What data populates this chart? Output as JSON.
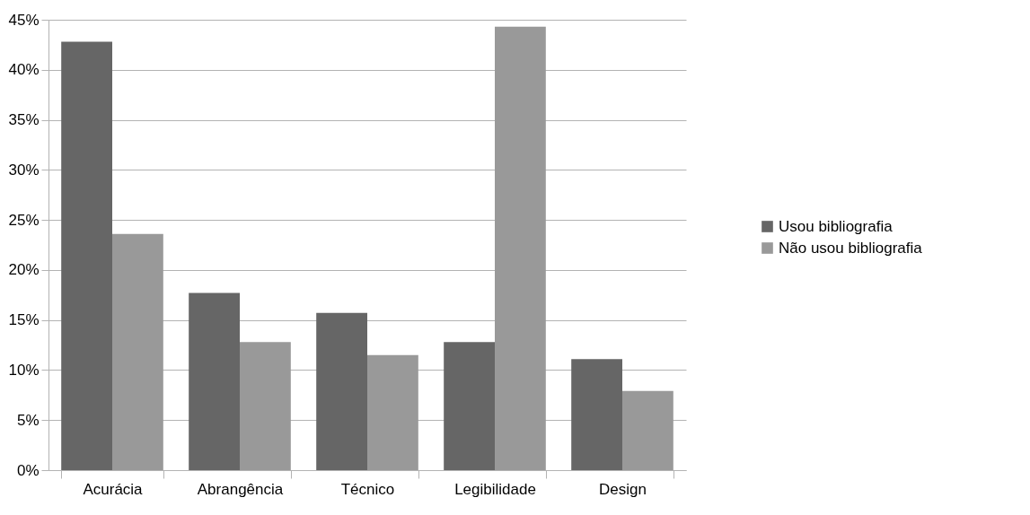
{
  "chart_data": {
    "type": "bar",
    "categories": [
      "Acurácia",
      "Abrangência",
      "Técnico",
      "Legibilidade",
      "Design"
    ],
    "series": [
      {
        "name": "Usou bibliografia",
        "color": "#666666",
        "values": [
          42.8,
          17.7,
          15.7,
          12.8,
          11.1
        ]
      },
      {
        "name": "Não usou bibliografia",
        "color": "#999999",
        "values": [
          23.6,
          12.8,
          11.5,
          44.3,
          7.9
        ]
      }
    ],
    "ylim": [
      0,
      45
    ],
    "yticks": [
      {
        "value": 0,
        "label": "0%"
      },
      {
        "value": 5,
        "label": "5%"
      },
      {
        "value": 10,
        "label": "10%"
      },
      {
        "value": 15,
        "label": "15%"
      },
      {
        "value": 20,
        "label": "20%"
      },
      {
        "value": 25,
        "label": "25%"
      },
      {
        "value": 30,
        "label": "30%"
      },
      {
        "value": 35,
        "label": "35%"
      },
      {
        "value": 40,
        "label": "40%"
      },
      {
        "value": 45,
        "label": "45%"
      }
    ],
    "grid": "y",
    "legend": "right"
  }
}
